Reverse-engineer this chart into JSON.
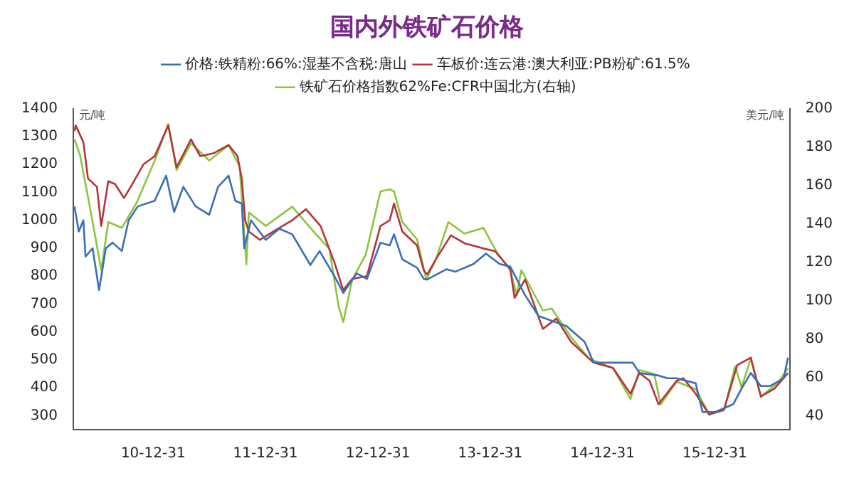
{
  "chart_data": {
    "type": "line",
    "title": "国内外铁矿石价格",
    "ylabel": "元/吨",
    "y2label": "美元/吨",
    "xlim": [
      "2010-04-15",
      "2016-08-31"
    ],
    "xticks": [
      {
        "value": "2010-12-31",
        "label": "10-12-31"
      },
      {
        "value": "2011-12-31",
        "label": "11-12-31"
      },
      {
        "value": "2012-12-31",
        "label": "12-12-31"
      },
      {
        "value": "2013-12-31",
        "label": "13-12-31"
      },
      {
        "value": "2014-12-31",
        "label": "14-12-31"
      },
      {
        "value": "2015-12-31",
        "label": "15-12-31"
      }
    ],
    "ylim": [
      250,
      1400
    ],
    "yticks": [
      300,
      400,
      500,
      600,
      700,
      800,
      900,
      1000,
      1100,
      1200,
      1300,
      1400
    ],
    "y2lim": [
      33,
      200
    ],
    "y2ticks": [
      40,
      60,
      80,
      100,
      120,
      140,
      160,
      180,
      200
    ],
    "grid": false,
    "legend": "top",
    "marker": "none",
    "line_style": "solid",
    "series": [
      {
        "name": "价格:铁精粉:66%:湿基不含税:唐山",
        "color": "#3a6fb5",
        "x": [
          "2010-04-19",
          "2010-05-03",
          "2010-05-18",
          "2010-05-25",
          "2010-06-17",
          "2010-07-08",
          "2010-07-30",
          "2010-08-21",
          "2010-09-20",
          "2010-10-12",
          "2010-11-11",
          "2011-01-05",
          "2011-02-11",
          "2011-03-09",
          "2011-04-08",
          "2011-05-18",
          "2011-07-01",
          "2011-07-30",
          "2011-09-02",
          "2011-09-24",
          "2011-10-15",
          "2011-10-23",
          "2011-11-14",
          "2012-01-01",
          "2012-02-14",
          "2012-03-27",
          "2012-05-25",
          "2012-06-24",
          "2012-08-11",
          "2012-09-09",
          "2012-10-23",
          "2012-11-25",
          "2013-01-08",
          "2013-02-07",
          "2013-02-21",
          "2013-03-20",
          "2013-05-07",
          "2013-05-29",
          "2013-06-09",
          "2013-08-11",
          "2013-09-09",
          "2013-11-07",
          "2013-12-17",
          "2014-01-30",
          "2014-03-06",
          "2014-04-23",
          "2014-06-06",
          "2014-09-06",
          "2014-11-03",
          "2014-12-02",
          "2015-02-03",
          "2015-04-08",
          "2015-04-30",
          "2015-07-01",
          "2015-07-30",
          "2015-08-29",
          "2015-10-30",
          "2015-11-21",
          "2016-01-01",
          "2016-02-29",
          "2016-03-27",
          "2016-04-26",
          "2016-05-29",
          "2016-06-27",
          "2016-08-11",
          "2016-08-25"
        ],
        "values": [
          1050,
          960,
          1000,
          870,
          900,
          750,
          900,
          920,
          890,
          1000,
          1050,
          1070,
          1160,
          1030,
          1120,
          1050,
          1020,
          1120,
          1160,
          1070,
          1060,
          900,
          1000,
          930,
          970,
          950,
          840,
          890,
          800,
          740,
          810,
          790,
          920,
          910,
          950,
          860,
          830,
          790,
          788,
          825,
          816,
          844,
          881,
          844,
          834,
          732,
          657,
          620,
          564,
          490,
          490,
          490,
          453,
          444,
          434,
          434,
          416,
          313,
          313,
          341,
          397,
          453,
          406,
          406,
          434,
          508
        ]
      },
      {
        "name": "车板价:连云港:澳大利亚:PB粉矿:61.5%",
        "color": "#b5343a",
        "x": [
          "2010-04-19",
          "2010-04-23",
          "2010-05-18",
          "2010-06-02",
          "2010-07-01",
          "2010-07-15",
          "2010-08-07",
          "2010-08-29",
          "2010-09-27",
          "2010-10-19",
          "2010-11-29",
          "2011-01-05",
          "2011-02-18",
          "2011-03-17",
          "2011-05-03",
          "2011-06-02",
          "2011-07-15",
          "2011-09-02",
          "2011-10-01",
          "2011-10-15",
          "2011-10-26",
          "2011-11-07",
          "2011-12-13",
          "2012-01-26",
          "2012-03-27",
          "2012-05-11",
          "2012-06-27",
          "2012-08-11",
          "2012-09-09",
          "2012-10-08",
          "2012-11-25",
          "2013-01-08",
          "2013-02-07",
          "2013-02-21",
          "2013-03-20",
          "2013-05-07",
          "2013-05-29",
          "2013-06-09",
          "2013-07-08",
          "2013-08-25",
          "2013-10-08",
          "2013-12-09",
          "2014-01-15",
          "2014-03-06",
          "2014-03-20",
          "2014-04-23",
          "2014-06-20",
          "2014-08-03",
          "2014-09-20",
          "2014-12-02",
          "2015-02-03",
          "2015-04-01",
          "2015-04-30",
          "2015-06-02",
          "2015-07-01",
          "2015-08-29",
          "2015-09-20",
          "2015-10-30",
          "2015-12-13",
          "2016-01-30",
          "2016-03-13",
          "2016-04-26",
          "2016-05-29",
          "2016-07-12",
          "2016-08-25"
        ],
        "values": [
          1320,
          1340,
          1280,
          1150,
          1120,
          980,
          1140,
          1130,
          1080,
          1120,
          1200,
          1230,
          1340,
          1190,
          1290,
          1230,
          1240,
          1270,
          1230,
          1150,
          1000,
          960,
          930,
          960,
          1000,
          1040,
          980,
          850,
          750,
          790,
          800,
          980,
          1000,
          1060,
          960,
          910,
          820,
          806,
          862,
          946,
          918,
          899,
          890,
          825,
          722,
          788,
          611,
          648,
          564,
          490,
          471,
          378,
          453,
          425,
          341,
          425,
          434,
          378,
          304,
          322,
          481,
          508,
          369,
          397,
          453
        ]
      },
      {
        "name": "铁矿石价格指数62%Fe:CFR中国北方(右轴)",
        "color": "#8cc63f",
        "axis": "y2",
        "x": [
          "2010-04-19",
          "2010-05-07",
          "2010-06-02",
          "2010-06-24",
          "2010-07-15",
          "2010-08-07",
          "2010-09-20",
          "2010-11-07",
          "2011-01-05",
          "2011-02-18",
          "2011-03-17",
          "2011-05-03",
          "2011-07-01",
          "2011-09-02",
          "2011-10-08",
          "2011-10-30",
          "2011-11-07",
          "2012-01-01",
          "2012-03-27",
          "2012-05-25",
          "2012-07-26",
          "2012-08-25",
          "2012-09-09",
          "2012-10-08",
          "2012-11-21",
          "2013-01-08",
          "2013-02-07",
          "2013-02-21",
          "2013-03-20",
          "2013-05-07",
          "2013-06-06",
          "2013-07-08",
          "2013-08-17",
          "2013-10-08",
          "2013-12-09",
          "2014-01-22",
          "2014-03-06",
          "2014-03-27",
          "2014-04-11",
          "2014-06-20",
          "2014-07-19",
          "2014-09-20",
          "2014-11-17",
          "2015-02-03",
          "2015-04-01",
          "2015-04-30",
          "2015-06-17",
          "2015-07-08",
          "2015-08-29",
          "2015-10-30",
          "2015-12-13",
          "2016-01-30",
          "2016-03-06",
          "2016-03-27",
          "2016-04-26",
          "2016-05-29",
          "2016-07-26",
          "2016-08-25"
        ],
        "values": [
          184,
          176,
          154,
          135,
          116,
          141,
          138,
          151,
          173,
          192,
          168,
          182,
          173,
          181,
          170,
          119,
          146,
          139,
          149,
          138,
          127,
          97,
          89,
          111,
          124,
          157,
          158,
          157,
          141,
          132,
          111,
          122,
          141,
          135,
          138,
          125,
          116,
          103,
          116,
          95,
          96,
          81,
          70,
          65,
          49,
          64,
          62,
          46,
          58,
          54,
          41,
          43,
          66,
          55,
          70,
          50,
          58,
          65
        ]
      }
    ]
  }
}
